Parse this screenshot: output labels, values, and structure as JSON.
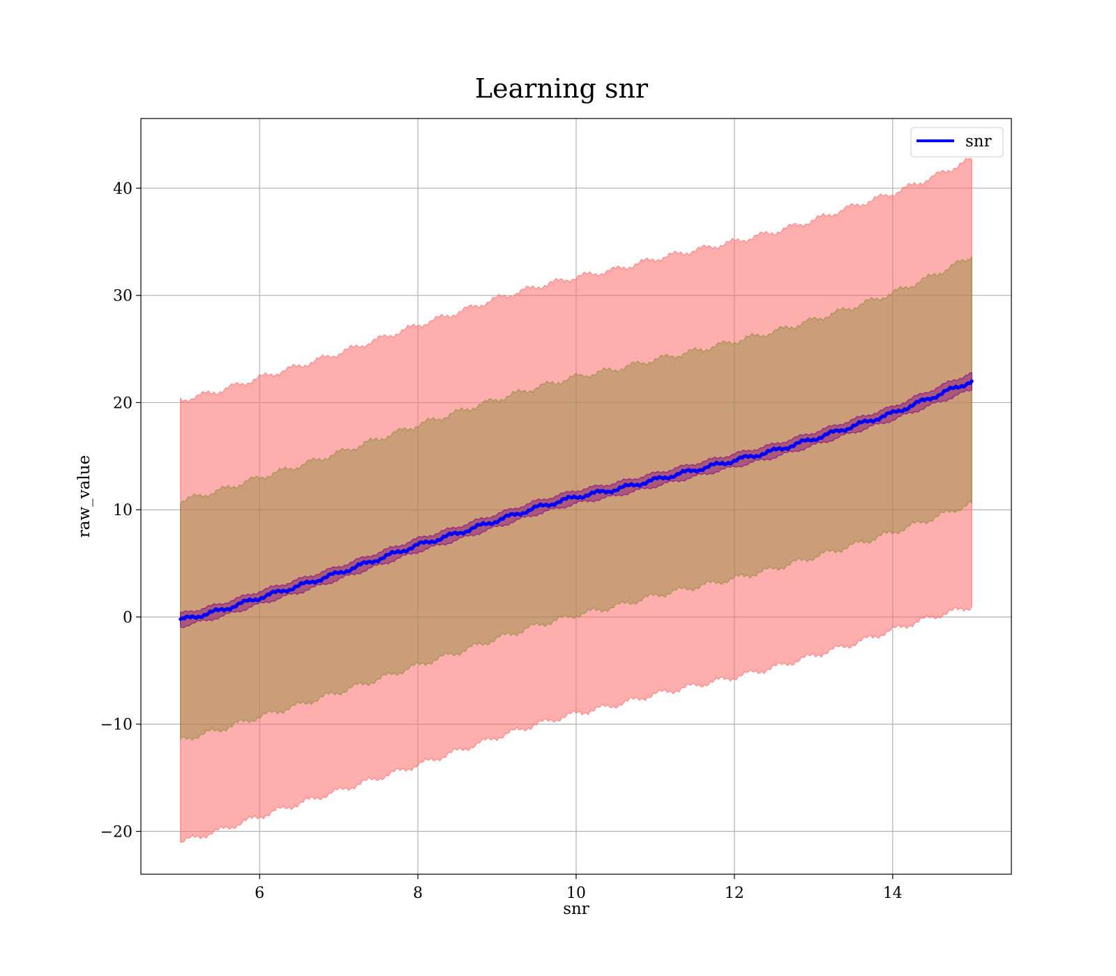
{
  "chart_data": {
    "type": "line",
    "title": "Learning snr",
    "xlabel": "snr",
    "ylabel": "raw_value",
    "xlim": [
      4.5,
      15.5
    ],
    "ylim": [
      -24,
      46.5
    ],
    "xticks": [
      6,
      8,
      10,
      12,
      14
    ],
    "yticks": [
      -20,
      -10,
      0,
      10,
      20,
      30,
      40
    ],
    "xtick_labels": [
      "6",
      "8",
      "10",
      "12",
      "14"
    ],
    "ytick_labels": [
      "−20",
      "−10",
      "0",
      "10",
      "20",
      "30",
      "40"
    ],
    "grid": true,
    "legend": {
      "position": "top-right",
      "entries": [
        "snr"
      ]
    },
    "colors": {
      "line": "#0000ff",
      "outer_band": "#ff6b6b",
      "inner_band": "#8b8b3a",
      "line_band": "#800080"
    },
    "series": [
      {
        "name": "snr",
        "x": [
          5,
          5.5,
          6,
          6.5,
          7,
          7.5,
          8,
          8.5,
          9,
          9.5,
          10,
          10.5,
          11,
          11.5,
          12,
          12.5,
          13,
          13.5,
          14,
          14.5,
          15
        ],
        "y": [
          -0.3,
          0.6,
          1.8,
          2.9,
          4.1,
          5.4,
          6.7,
          7.8,
          9.0,
          10.2,
          11.2,
          11.9,
          12.8,
          13.7,
          14.6,
          15.5,
          16.6,
          17.8,
          19.0,
          20.5,
          22.0
        ]
      }
    ],
    "bands": [
      {
        "x": [
          5,
          5.5,
          6,
          6.5,
          7,
          7.5,
          8,
          8.5,
          9,
          9.5,
          10,
          10.5,
          11,
          11.5,
          12,
          12.5,
          13,
          13.5,
          14,
          14.5,
          15
        ],
        "lower": [
          -21.0,
          -19.9,
          -18.6,
          -17.4,
          -16.2,
          -15.0,
          -13.8,
          -12.5,
          -11.2,
          -10.0,
          -9.0,
          -8.2,
          -7.2,
          -6.4,
          -5.6,
          -4.7,
          -3.6,
          -2.5,
          -1.2,
          0.0,
          1.0
        ],
        "upper": [
          20.2,
          21.1,
          22.3,
          23.4,
          24.6,
          25.9,
          27.2,
          28.4,
          29.7,
          30.8,
          31.7,
          32.4,
          33.4,
          34.2,
          35.0,
          35.9,
          37.0,
          38.3,
          39.5,
          41.0,
          42.7
        ]
      },
      {
        "x": [
          5,
          5.5,
          6,
          6.5,
          7,
          7.5,
          8,
          8.5,
          9,
          9.5,
          10,
          10.5,
          11,
          11.5,
          12,
          12.5,
          13,
          13.5,
          14,
          14.5,
          15
        ],
        "lower": [
          -11.5,
          -10.5,
          -9.3,
          -8.2,
          -7.0,
          -5.8,
          -4.5,
          -3.3,
          -2.0,
          -0.8,
          0.2,
          1.0,
          2.0,
          2.8,
          3.6,
          4.5,
          5.6,
          6.7,
          7.9,
          9.2,
          10.6
        ],
        "upper": [
          10.8,
          11.8,
          13.0,
          14.1,
          15.3,
          16.6,
          17.9,
          19.1,
          20.3,
          21.4,
          22.4,
          23.1,
          24.0,
          24.8,
          25.7,
          26.6,
          27.7,
          28.9,
          30.2,
          31.8,
          33.6
        ]
      },
      {
        "x": [
          5,
          5.5,
          6,
          6.5,
          7,
          7.5,
          8,
          8.5,
          9,
          9.5,
          10,
          10.5,
          11,
          11.5,
          12,
          12.5,
          13,
          13.5,
          14,
          14.5,
          15
        ],
        "lower": [
          -0.9,
          0.0,
          1.2,
          2.3,
          3.5,
          4.8,
          6.1,
          7.2,
          8.4,
          9.6,
          10.6,
          11.3,
          12.2,
          13.1,
          14.0,
          14.9,
          16.0,
          17.2,
          18.4,
          19.8,
          21.2
        ],
        "upper": [
          0.3,
          1.2,
          2.4,
          3.5,
          4.7,
          6.0,
          7.3,
          8.4,
          9.6,
          10.8,
          11.8,
          12.5,
          13.4,
          14.3,
          15.2,
          16.1,
          17.2,
          18.4,
          19.6,
          21.2,
          22.8
        ]
      }
    ]
  }
}
